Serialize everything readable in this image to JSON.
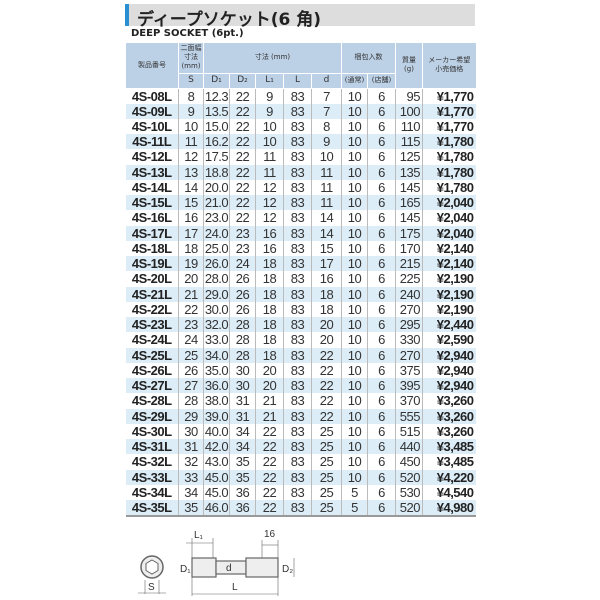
{
  "title": "ディープソケット(6 角)",
  "subtitle": "DEEP SOCKET (6pt.)",
  "headers": {
    "model": "製品番号",
    "width": "二面幅\n寸法\n(mm)",
    "dims": "寸法 (mm)",
    "pack": "梱包入数",
    "weight": "質量\n(g)",
    "price": "メーカー希望\n小売価格",
    "S": "S",
    "D1": "D₁",
    "D2": "D₂",
    "L1": "L₁",
    "L": "L",
    "d": "d",
    "normal": "(通常)",
    "store": "(店舗)"
  },
  "rows": [
    [
      "4S-08L",
      "8",
      "12.3",
      "22",
      "9",
      "83",
      "7",
      "10",
      "6",
      "95",
      "¥1,770"
    ],
    [
      "4S-09L",
      "9",
      "13.5",
      "22",
      "9",
      "83",
      "7",
      "10",
      "6",
      "100",
      "¥1,770"
    ],
    [
      "4S-10L",
      "10",
      "15.0",
      "22",
      "10",
      "83",
      "8",
      "10",
      "6",
      "110",
      "¥1,770"
    ],
    [
      "4S-11L",
      "11",
      "16.2",
      "22",
      "10",
      "83",
      "9",
      "10",
      "6",
      "115",
      "¥1,780"
    ],
    [
      "4S-12L",
      "12",
      "17.5",
      "22",
      "11",
      "83",
      "10",
      "10",
      "6",
      "125",
      "¥1,780"
    ],
    [
      "4S-13L",
      "13",
      "18.8",
      "22",
      "11",
      "83",
      "11",
      "10",
      "6",
      "135",
      "¥1,780"
    ],
    [
      "4S-14L",
      "14",
      "20.0",
      "22",
      "12",
      "83",
      "11",
      "10",
      "6",
      "145",
      "¥1,780"
    ],
    [
      "4S-15L",
      "15",
      "21.0",
      "22",
      "12",
      "83",
      "11",
      "10",
      "6",
      "165",
      "¥2,040"
    ],
    [
      "4S-16L",
      "16",
      "23.0",
      "22",
      "12",
      "83",
      "14",
      "10",
      "6",
      "145",
      "¥2,040"
    ],
    [
      "4S-17L",
      "17",
      "24.0",
      "23",
      "16",
      "83",
      "14",
      "10",
      "6",
      "175",
      "¥2,040"
    ],
    [
      "4S-18L",
      "18",
      "25.0",
      "23",
      "16",
      "83",
      "15",
      "10",
      "6",
      "170",
      "¥2,140"
    ],
    [
      "4S-19L",
      "19",
      "26.0",
      "24",
      "18",
      "83",
      "17",
      "10",
      "6",
      "215",
      "¥2,140"
    ],
    [
      "4S-20L",
      "20",
      "28.0",
      "26",
      "18",
      "83",
      "16",
      "10",
      "6",
      "225",
      "¥2,190"
    ],
    [
      "4S-21L",
      "21",
      "29.0",
      "26",
      "18",
      "83",
      "18",
      "10",
      "6",
      "240",
      "¥2,190"
    ],
    [
      "4S-22L",
      "22",
      "30.0",
      "26",
      "18",
      "83",
      "18",
      "10",
      "6",
      "270",
      "¥2,190"
    ],
    [
      "4S-23L",
      "23",
      "32.0",
      "28",
      "18",
      "83",
      "20",
      "10",
      "6",
      "295",
      "¥2,440"
    ],
    [
      "4S-24L",
      "24",
      "33.0",
      "28",
      "18",
      "83",
      "20",
      "10",
      "6",
      "330",
      "¥2,590"
    ],
    [
      "4S-25L",
      "25",
      "34.0",
      "28",
      "18",
      "83",
      "22",
      "10",
      "6",
      "270",
      "¥2,940"
    ],
    [
      "4S-26L",
      "26",
      "35.0",
      "30",
      "20",
      "83",
      "22",
      "10",
      "6",
      "375",
      "¥2,940"
    ],
    [
      "4S-27L",
      "27",
      "36.0",
      "30",
      "20",
      "83",
      "22",
      "10",
      "6",
      "395",
      "¥2,940"
    ],
    [
      "4S-28L",
      "28",
      "38.0",
      "31",
      "21",
      "83",
      "22",
      "10",
      "6",
      "370",
      "¥3,260"
    ],
    [
      "4S-29L",
      "29",
      "39.0",
      "31",
      "21",
      "83",
      "22",
      "10",
      "6",
      "555",
      "¥3,260"
    ],
    [
      "4S-30L",
      "30",
      "40.0",
      "34",
      "22",
      "83",
      "25",
      "10",
      "6",
      "515",
      "¥3,260"
    ],
    [
      "4S-31L",
      "31",
      "42.0",
      "34",
      "22",
      "83",
      "25",
      "10",
      "6",
      "440",
      "¥3,485"
    ],
    [
      "4S-32L",
      "32",
      "43.0",
      "35",
      "22",
      "83",
      "25",
      "10",
      "6",
      "450",
      "¥3,485"
    ],
    [
      "4S-33L",
      "33",
      "45.0",
      "35",
      "22",
      "83",
      "25",
      "10",
      "6",
      "520",
      "¥4,220"
    ],
    [
      "4S-34L",
      "34",
      "45.0",
      "36",
      "22",
      "83",
      "25",
      "5",
      "6",
      "530",
      "¥4,540"
    ],
    [
      "4S-35L",
      "35",
      "46.0",
      "36",
      "22",
      "83",
      "25",
      "5",
      "6",
      "520",
      "¥4,980"
    ]
  ],
  "diagram": {
    "L1": "L₁",
    "dim16": "16",
    "D1": "D₁",
    "D2": "D₂",
    "d": "d",
    "S": "S",
    "L": "L"
  },
  "colors": {
    "header_bg": "#bcd0e6",
    "row_alt": "#dcedf8",
    "accent": "#2a8fd0"
  }
}
